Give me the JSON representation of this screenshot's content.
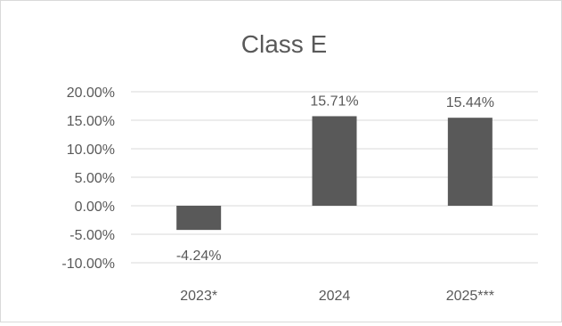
{
  "chart_data": {
    "type": "bar",
    "title": "Class E",
    "xlabel": "",
    "ylabel": "",
    "categories": [
      "2023*",
      "2024",
      "2025***"
    ],
    "values": [
      -4.24,
      15.71,
      15.44
    ],
    "data_labels": [
      "-4.24%",
      "15.71%",
      "15.44%"
    ],
    "ylim": [
      -10,
      20
    ],
    "yticks": [
      20,
      15,
      10,
      5,
      0,
      -5,
      -10
    ],
    "ytick_labels": [
      "20.00%",
      "15.00%",
      "10.00%",
      "5.00%",
      "0.00%",
      "-5.00%",
      "-10.00%"
    ],
    "grid": true,
    "legend": "none",
    "colors": {
      "bar": "#595959",
      "grid": "#d9d9d9",
      "text": "#595959"
    }
  }
}
